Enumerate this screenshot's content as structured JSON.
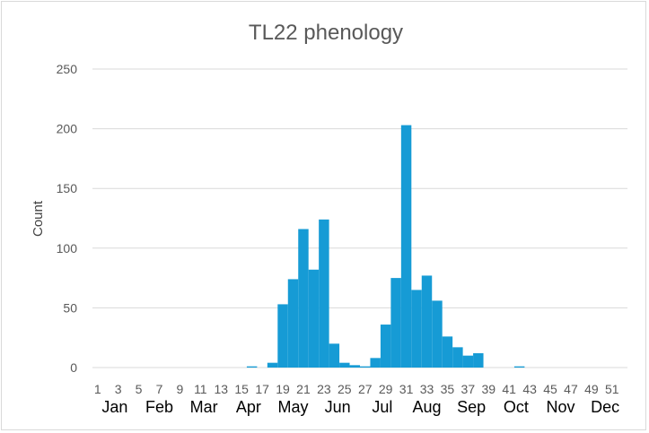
{
  "chart_data": {
    "type": "bar",
    "title": "TL22 phenology",
    "xlabel": "",
    "ylabel": "Count",
    "ylim": [
      0,
      250
    ],
    "yticks": [
      0,
      50,
      100,
      150,
      200,
      250
    ],
    "grid": true,
    "legend": "none",
    "bar_color": "#169bd5",
    "categories": [
      1,
      2,
      3,
      4,
      5,
      6,
      7,
      8,
      9,
      10,
      11,
      12,
      13,
      14,
      15,
      16,
      17,
      18,
      19,
      20,
      21,
      22,
      23,
      24,
      25,
      26,
      27,
      28,
      29,
      30,
      31,
      32,
      33,
      34,
      35,
      36,
      37,
      38,
      39,
      40,
      41,
      42,
      43,
      44,
      45,
      46,
      47,
      48,
      49,
      50,
      51,
      52
    ],
    "tick_labels": [
      "1",
      "3",
      "5",
      "7",
      "9",
      "11",
      "13",
      "15",
      "17",
      "19",
      "21",
      "23",
      "25",
      "27",
      "29",
      "31",
      "33",
      "35",
      "37",
      "39",
      "41",
      "43",
      "45",
      "47",
      "49",
      "51"
    ],
    "months": [
      "Jan",
      "Feb",
      "Mar",
      "Apr",
      "May",
      "Jun",
      "Jul",
      "Aug",
      "Sep",
      "Oct",
      "Nov",
      "Dec"
    ],
    "values": [
      0,
      0,
      0,
      0,
      0,
      0,
      0,
      0,
      0,
      0,
      0,
      0,
      0,
      0,
      0,
      1,
      0,
      4,
      53,
      74,
      116,
      82,
      124,
      20,
      4,
      2,
      1,
      8,
      36,
      75,
      203,
      65,
      77,
      56,
      26,
      17,
      10,
      12,
      0,
      0,
      0,
      1,
      0,
      0,
      0,
      0,
      0,
      0,
      0,
      0,
      0,
      0
    ]
  }
}
